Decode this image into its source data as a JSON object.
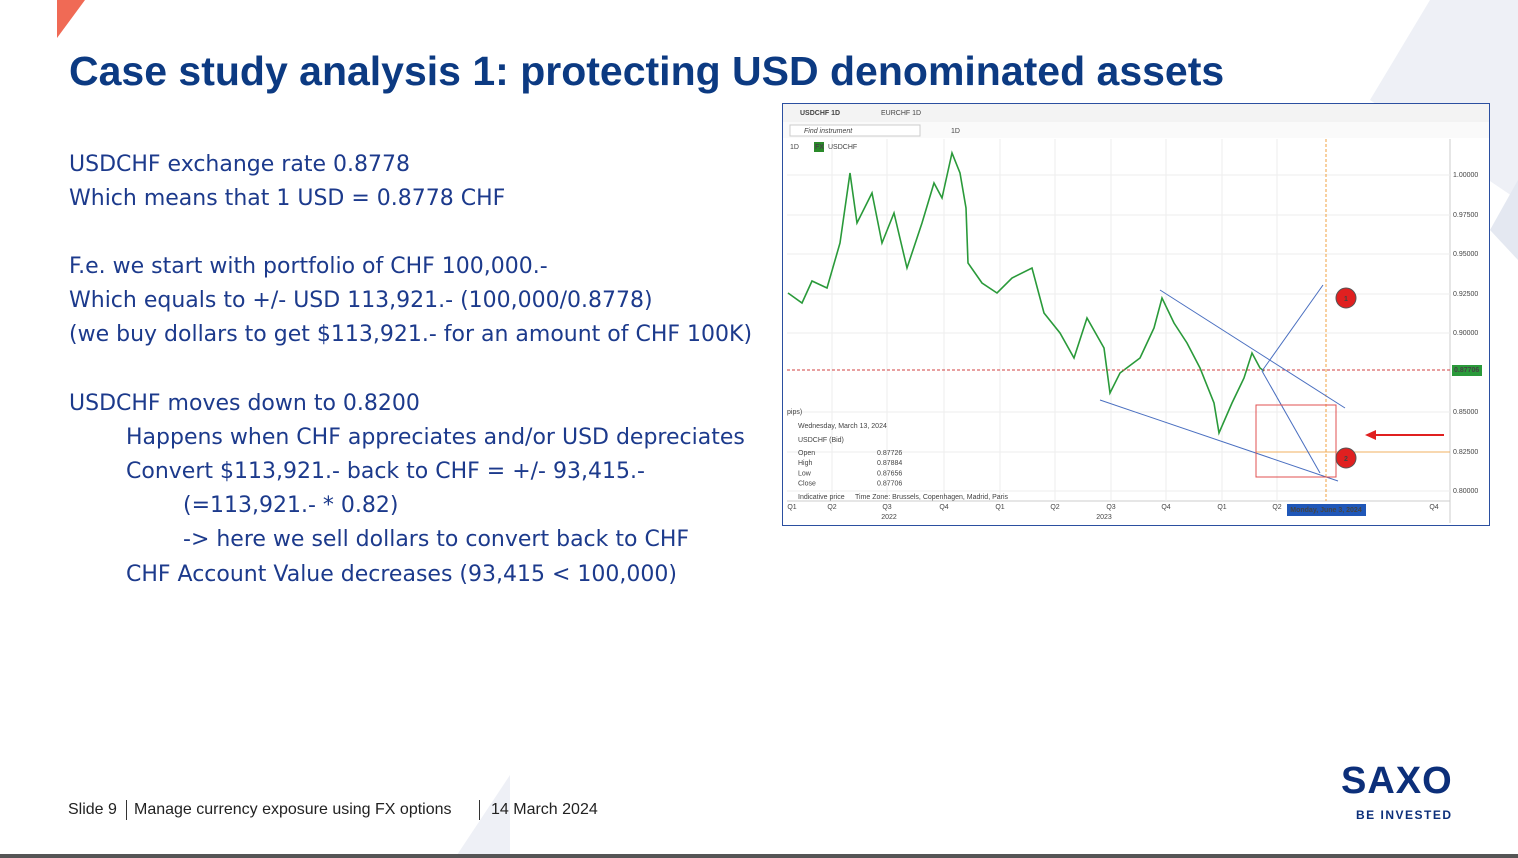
{
  "header": {
    "title": "Case study analysis 1: protecting USD denominated assets"
  },
  "body": {
    "lines": [
      "USDCHF exchange rate 0.8778",
      "Which means that 1 USD = 0.8778 CHF",
      "F.e. we start with portfolio of CHF 100,000.-",
      "Which equals to +/- USD 113,921.- (100,000/0.8778)",
      "(we buy dollars to get $113,921.- for an amount of CHF 100K)",
      "USDCHF moves down to 0.8200",
      "Happens when CHF appreciates and/or USD depreciates",
      "Convert $113,921.- back to CHF = +/- 93,415.-",
      "(=113,921.- * 0.82)",
      "-> here we sell dollars to convert back to CHF",
      "CHF Account Value decreases (93,415 < 100,000)"
    ]
  },
  "chart_screenshot": {
    "tabs": [
      "USDCHF 1D",
      "EURCHF 1D"
    ],
    "search_placeholder": "Find instrument",
    "toolbar_interval": "1D",
    "interval": "1D",
    "instrument_badge": "FX",
    "instrument": "USDCHF",
    "price_axis": [
      "1.00000",
      "0.97500",
      "0.95000",
      "0.92500",
      "0.90000",
      "0.85000",
      "0.82500",
      "0.80000"
    ],
    "current_price": "0.87706",
    "time_axis": [
      "Q1",
      "Q2",
      "Q3",
      "Q4",
      "Q1",
      "Q2",
      "Q3",
      "Q4",
      "Q1",
      "Q2",
      "Q4"
    ],
    "years": [
      "2022",
      "2023"
    ],
    "cursor_date": "Monday, June 3, 2024",
    "pips": "pips)",
    "info": {
      "date": "Wednesday, March 13, 2024",
      "instrument": "USDCHF (Bid)",
      "rows": [
        [
          "Open",
          "0.87726"
        ],
        [
          "High",
          "0.87884"
        ],
        [
          "Low",
          "0.87656"
        ],
        [
          "Close",
          "0.87706"
        ]
      ],
      "price_type": "Indicative price",
      "time_zone": "Time Zone: Brussels, Copenhagen, Madrid, Paris"
    },
    "markers": [
      "1",
      "2"
    ]
  },
  "footer": {
    "slide": "Slide 9",
    "subject": "Manage currency exposure using FX options",
    "date": "14 March 2024"
  },
  "logo": {
    "name": "SAXO",
    "tagline": "BE INVESTED"
  }
}
